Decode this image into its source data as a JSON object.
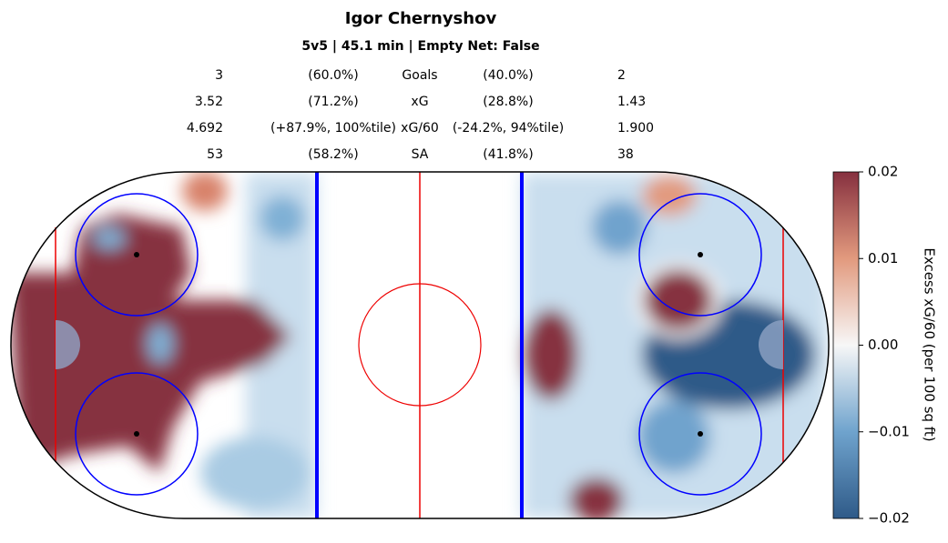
{
  "header": {
    "title": "Igor Chernyshov",
    "subtitle": "5v5 | 45.1 min | Empty Net: False"
  },
  "stats": {
    "rows": [
      [
        "3",
        "(60.0%)",
        "Goals",
        "(40.0%)",
        "2"
      ],
      [
        "3.52",
        "(71.2%)",
        "xG",
        "(28.8%)",
        "1.43"
      ],
      [
        "4.692",
        "(+87.9%, 100%tile)",
        "xG/60",
        "(-24.2%, 94%tile)",
        "1.900"
      ],
      [
        "53",
        "(58.2%)",
        "SA",
        "(41.8%)",
        "38"
      ]
    ]
  },
  "colorbar": {
    "label": "Excess xG/60 (per 100 sq ft)",
    "lim": [
      -0.02,
      0.02
    ],
    "ticks": [
      {
        "value": 0.02,
        "label": "0.02"
      },
      {
        "value": 0.01,
        "label": "0.01"
      },
      {
        "value": 0,
        "label": "0.00"
      },
      {
        "value": -0.01,
        "label": "−0.01"
      },
      {
        "value": -0.02,
        "label": "−0.02"
      }
    ],
    "colors": [
      "#2f5a88",
      "#6fa3cd",
      "#f7f7f7",
      "#e29a7e",
      "#86303f"
    ]
  }
}
